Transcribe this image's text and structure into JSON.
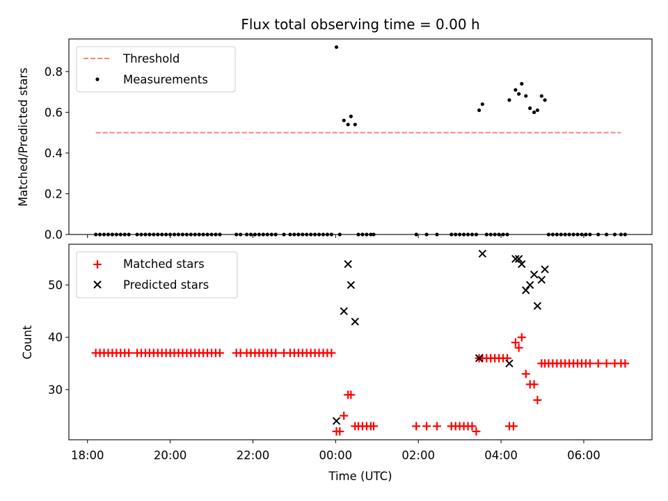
{
  "title": "Flux total observing time = 0.00 h",
  "colors": {
    "threshold": "#ff7f7f",
    "measurement": "#000000",
    "matched": "#ff0000",
    "predicted": "#000000"
  },
  "x_ticks": [
    "18:00",
    "20:00",
    "22:00",
    "00:00",
    "02:00",
    "04:00",
    "06:00"
  ],
  "chart_data": [
    {
      "type": "scatter",
      "panel": "top",
      "ylabel": "Matched/Predicted stars",
      "xlim_hours": [
        17.55,
        31.65
      ],
      "ylim": [
        0,
        0.96
      ],
      "yticks": [
        0.0,
        0.2,
        0.4,
        0.6,
        0.8
      ],
      "legend_position": "top-left",
      "threshold": {
        "name": "Threshold",
        "value": 0.5,
        "x_range_hours": [
          18.2,
          30.9
        ]
      },
      "series": [
        {
          "name": "Measurements",
          "points": [
            [
              18.2,
              0
            ],
            [
              18.3,
              0
            ],
            [
              18.4,
              0
            ],
            [
              18.5,
              0
            ],
            [
              18.6,
              0
            ],
            [
              18.7,
              0
            ],
            [
              18.8,
              0
            ],
            [
              18.9,
              0
            ],
            [
              19.0,
              0
            ],
            [
              19.2,
              0
            ],
            [
              19.3,
              0
            ],
            [
              19.4,
              0
            ],
            [
              19.5,
              0
            ],
            [
              19.6,
              0
            ],
            [
              19.7,
              0
            ],
            [
              19.8,
              0
            ],
            [
              19.9,
              0
            ],
            [
              20.0,
              0
            ],
            [
              20.1,
              0
            ],
            [
              20.2,
              0
            ],
            [
              20.3,
              0
            ],
            [
              20.4,
              0
            ],
            [
              20.5,
              0
            ],
            [
              20.6,
              0
            ],
            [
              20.7,
              0
            ],
            [
              20.8,
              0
            ],
            [
              20.9,
              0
            ],
            [
              21.0,
              0
            ],
            [
              21.1,
              0
            ],
            [
              21.2,
              0
            ],
            [
              21.6,
              0
            ],
            [
              21.7,
              0
            ],
            [
              21.85,
              0
            ],
            [
              21.95,
              0
            ],
            [
              22.05,
              0
            ],
            [
              22.15,
              0
            ],
            [
              22.25,
              0
            ],
            [
              22.35,
              0
            ],
            [
              22.45,
              0
            ],
            [
              22.55,
              0
            ],
            [
              22.75,
              0
            ],
            [
              22.9,
              0
            ],
            [
              23.0,
              0
            ],
            [
              23.1,
              0
            ],
            [
              23.2,
              0
            ],
            [
              23.3,
              0
            ],
            [
              23.4,
              0
            ],
            [
              23.5,
              0
            ],
            [
              23.6,
              0
            ],
            [
              23.7,
              0
            ],
            [
              23.8,
              0
            ],
            [
              23.9,
              0
            ],
            [
              24.02,
              0.92
            ],
            [
              24.1,
              0
            ],
            [
              24.2,
              0.56
            ],
            [
              24.3,
              0.54
            ],
            [
              24.37,
              0.58
            ],
            [
              24.47,
              0.54
            ],
            [
              24.55,
              0
            ],
            [
              24.65,
              0
            ],
            [
              24.75,
              0
            ],
            [
              24.85,
              0
            ],
            [
              24.92,
              0
            ],
            [
              25.95,
              0
            ],
            [
              26.2,
              0
            ],
            [
              26.45,
              0
            ],
            [
              26.8,
              0
            ],
            [
              26.9,
              0
            ],
            [
              27.0,
              0
            ],
            [
              27.1,
              0
            ],
            [
              27.2,
              0
            ],
            [
              27.3,
              0
            ],
            [
              27.4,
              0
            ],
            [
              27.47,
              0.61
            ],
            [
              27.55,
              0.64
            ],
            [
              27.65,
              0
            ],
            [
              27.75,
              0
            ],
            [
              27.85,
              0
            ],
            [
              27.95,
              0
            ],
            [
              28.05,
              0
            ],
            [
              28.15,
              0
            ],
            [
              28.2,
              0.66
            ],
            [
              28.35,
              0.71
            ],
            [
              28.43,
              0.69
            ],
            [
              28.5,
              0.74
            ],
            [
              28.6,
              0.68
            ],
            [
              28.7,
              0.62
            ],
            [
              28.8,
              0.6
            ],
            [
              28.88,
              0.61
            ],
            [
              28.98,
              0.68
            ],
            [
              29.06,
              0.66
            ],
            [
              29.15,
              0
            ],
            [
              29.25,
              0
            ],
            [
              29.35,
              0
            ],
            [
              29.45,
              0
            ],
            [
              29.55,
              0
            ],
            [
              29.65,
              0
            ],
            [
              29.75,
              0
            ],
            [
              29.85,
              0
            ],
            [
              29.95,
              0
            ],
            [
              30.05,
              0
            ],
            [
              30.15,
              0
            ],
            [
              30.35,
              0
            ],
            [
              30.55,
              0
            ],
            [
              30.75,
              0
            ],
            [
              30.9,
              0
            ],
            [
              31.0,
              0
            ]
          ]
        }
      ]
    },
    {
      "type": "scatter",
      "panel": "bottom",
      "xlabel": "Time (UTC)",
      "ylabel": "Count",
      "xlim_hours": [
        17.55,
        31.65
      ],
      "ylim": [
        20.4,
        57.8
      ],
      "yticks": [
        30,
        40,
        50
      ],
      "legend_position": "top-left",
      "series": [
        {
          "name": "Matched stars",
          "points": [
            [
              18.2,
              37
            ],
            [
              18.3,
              37
            ],
            [
              18.4,
              37
            ],
            [
              18.5,
              37
            ],
            [
              18.6,
              37
            ],
            [
              18.7,
              37
            ],
            [
              18.8,
              37
            ],
            [
              18.9,
              37
            ],
            [
              19.0,
              37
            ],
            [
              19.2,
              37
            ],
            [
              19.3,
              37
            ],
            [
              19.4,
              37
            ],
            [
              19.5,
              37
            ],
            [
              19.6,
              37
            ],
            [
              19.7,
              37
            ],
            [
              19.8,
              37
            ],
            [
              19.9,
              37
            ],
            [
              20.0,
              37
            ],
            [
              20.1,
              37
            ],
            [
              20.2,
              37
            ],
            [
              20.3,
              37
            ],
            [
              20.4,
              37
            ],
            [
              20.5,
              37
            ],
            [
              20.6,
              37
            ],
            [
              20.7,
              37
            ],
            [
              20.8,
              37
            ],
            [
              20.9,
              37
            ],
            [
              21.0,
              37
            ],
            [
              21.1,
              37
            ],
            [
              21.2,
              37
            ],
            [
              21.6,
              37
            ],
            [
              21.7,
              37
            ],
            [
              21.85,
              37
            ],
            [
              21.95,
              37
            ],
            [
              22.05,
              37
            ],
            [
              22.15,
              37
            ],
            [
              22.25,
              37
            ],
            [
              22.35,
              37
            ],
            [
              22.45,
              37
            ],
            [
              22.55,
              37
            ],
            [
              22.75,
              37
            ],
            [
              22.9,
              37
            ],
            [
              23.0,
              37
            ],
            [
              23.1,
              37
            ],
            [
              23.2,
              37
            ],
            [
              23.3,
              37
            ],
            [
              23.4,
              37
            ],
            [
              23.5,
              37
            ],
            [
              23.6,
              37
            ],
            [
              23.7,
              37
            ],
            [
              23.8,
              37
            ],
            [
              23.9,
              37
            ],
            [
              24.02,
              22
            ],
            [
              24.1,
              22
            ],
            [
              24.2,
              25
            ],
            [
              24.3,
              29
            ],
            [
              24.37,
              29
            ],
            [
              24.47,
              23
            ],
            [
              24.55,
              23
            ],
            [
              24.65,
              23
            ],
            [
              24.75,
              23
            ],
            [
              24.85,
              23
            ],
            [
              24.92,
              23
            ],
            [
              25.95,
              23
            ],
            [
              26.2,
              23
            ],
            [
              26.45,
              23
            ],
            [
              26.8,
              23
            ],
            [
              26.9,
              23
            ],
            [
              27.0,
              23
            ],
            [
              27.1,
              23
            ],
            [
              27.2,
              23
            ],
            [
              27.3,
              23
            ],
            [
              27.4,
              22
            ],
            [
              27.47,
              36
            ],
            [
              27.55,
              36
            ],
            [
              27.65,
              36
            ],
            [
              27.75,
              36
            ],
            [
              27.85,
              36
            ],
            [
              27.95,
              36
            ],
            [
              28.05,
              36
            ],
            [
              28.15,
              36
            ],
            [
              28.2,
              23
            ],
            [
              28.3,
              23
            ],
            [
              28.35,
              39
            ],
            [
              28.43,
              38
            ],
            [
              28.5,
              40
            ],
            [
              28.6,
              33
            ],
            [
              28.7,
              31
            ],
            [
              28.8,
              31
            ],
            [
              28.88,
              28
            ],
            [
              28.98,
              35
            ],
            [
              29.06,
              35
            ],
            [
              29.15,
              35
            ],
            [
              29.25,
              35
            ],
            [
              29.35,
              35
            ],
            [
              29.45,
              35
            ],
            [
              29.55,
              35
            ],
            [
              29.65,
              35
            ],
            [
              29.75,
              35
            ],
            [
              29.85,
              35
            ],
            [
              29.95,
              35
            ],
            [
              30.05,
              35
            ],
            [
              30.15,
              35
            ],
            [
              30.35,
              35
            ],
            [
              30.55,
              35
            ],
            [
              30.75,
              35
            ],
            [
              30.9,
              35
            ],
            [
              31.0,
              35
            ]
          ]
        },
        {
          "name": "Predicted stars",
          "points": [
            [
              24.02,
              24
            ],
            [
              24.2,
              45
            ],
            [
              24.3,
              54
            ],
            [
              24.37,
              50
            ],
            [
              24.47,
              43
            ],
            [
              27.47,
              36
            ],
            [
              27.55,
              56
            ],
            [
              28.2,
              35
            ],
            [
              28.35,
              55
            ],
            [
              28.43,
              55
            ],
            [
              28.5,
              54
            ],
            [
              28.6,
              49
            ],
            [
              28.7,
              50
            ],
            [
              28.8,
              52
            ],
            [
              28.88,
              46
            ],
            [
              28.98,
              51
            ],
            [
              29.06,
              53
            ]
          ]
        }
      ]
    }
  ]
}
